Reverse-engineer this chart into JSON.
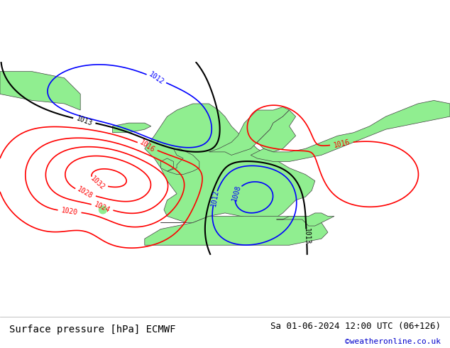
{
  "title_left": "Surface pressure [hPa] ECMWF",
  "title_right": "Sa 01-06-2024 12:00 UTC (06+126)",
  "copyright": "©weatheronline.co.uk",
  "background_color": "#d0d0d0",
  "land_color": "#90ee90",
  "sea_color": "#d3d3d3",
  "fig_bg": "#ffffff",
  "footer_bg": "#f0f0f0",
  "bottom_text_color": "#000000",
  "copyright_color": "#0000cc",
  "figsize": [
    6.34,
    4.9
  ],
  "dpi": 100
}
